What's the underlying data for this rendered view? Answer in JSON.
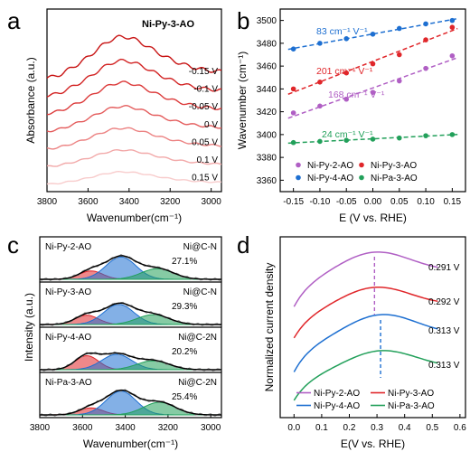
{
  "panel_letters": [
    "a",
    "b",
    "c",
    "d"
  ],
  "colors": {
    "Ni-Py-2-AO": "#b05fc4",
    "Ni-Py-3-AO": "#e0262a",
    "Ni-Py-4-AO": "#1d6fd1",
    "Ni-Pa-3-AO": "#22a05a",
    "axis": "#000000"
  },
  "chart_data": [
    {
      "id": "a",
      "type": "line",
      "title": "Ni-Py-3-AO",
      "xlabel": "Wavenumber(cm⁻¹)",
      "ylabel": "Absorbance (a.u.)",
      "xlim": [
        3800,
        2950
      ],
      "xticks": [
        3800,
        3600,
        3400,
        3200,
        3000
      ],
      "peak_x": 3460,
      "series": [
        {
          "name": "-0.15 V",
          "amplitude": 1.0,
          "offset": 6,
          "color": "#c81414"
        },
        {
          "name": "-0.1 V",
          "amplitude": 0.85,
          "offset": 5,
          "color": "#d22222"
        },
        {
          "name": "-0.05 V",
          "amplitude": 0.75,
          "offset": 4,
          "color": "#dc3a3a"
        },
        {
          "name": "0 V",
          "amplitude": 0.6,
          "offset": 3,
          "color": "#e45c5c"
        },
        {
          "name": "0.05 V",
          "amplitude": 0.5,
          "offset": 2,
          "color": "#ec8282"
        },
        {
          "name": "0.1 V",
          "amplitude": 0.4,
          "offset": 1,
          "color": "#f2a8a8"
        },
        {
          "name": "0.15 V",
          "amplitude": 0.3,
          "offset": 0,
          "color": "#f8cccc"
        }
      ]
    },
    {
      "id": "b",
      "type": "scatter",
      "xlabel": "E (V vs. RHE)",
      "ylabel": "Wavenumber (cm⁻¹)",
      "xlim": [
        -0.175,
        0.175
      ],
      "ylim": [
        3350,
        3510
      ],
      "xticks": [
        "-0.15",
        "-0.10",
        "-0.05",
        "0.00",
        "0.05",
        "0.10",
        "0.15"
      ],
      "yticks": [
        "3360",
        "3380",
        "3400",
        "3420",
        "3440",
        "3460",
        "3480",
        "3500"
      ],
      "x": [
        -0.15,
        -0.1,
        -0.05,
        0.0,
        0.05,
        0.1,
        0.15
      ],
      "series": [
        {
          "name": "Ni-Py-4-AO",
          "values": [
            3475,
            3480,
            3484,
            3488,
            3493,
            3497,
            3500
          ],
          "slope_label": "83 cm⁻¹ V⁻¹",
          "color": "#1d6fd1"
        },
        {
          "name": "Ni-Py-3-AO",
          "values": [
            3440,
            3446,
            3454,
            3462,
            3470,
            3483,
            3494
          ],
          "slope_label": "201 cm⁻¹ V⁻¹",
          "color": "#e0262a"
        },
        {
          "name": "Ni-Py-2-AO",
          "values": [
            3419,
            3425,
            3431,
            3437,
            3447,
            3458,
            3469
          ],
          "slope_label": "168 cm⁻¹ V⁻¹",
          "color": "#b05fc4"
        },
        {
          "name": "Ni-Pa-3-AO",
          "values": [
            3393,
            3394,
            3395,
            3396,
            3397,
            3399,
            3400
          ],
          "slope_label": "24 cm⁻¹ V⁻¹",
          "color": "#22a05a"
        }
      ],
      "legend": [
        "Ni-Py-2-AO",
        "Ni-Py-3-AO",
        "Ni-Py-4-AO",
        "Ni-Pa-3-AO"
      ]
    },
    {
      "id": "c",
      "type": "area",
      "xlabel": "Wavenumber(cm⁻¹)",
      "ylabel": "Intensity (a.u.)",
      "xlim": [
        3800,
        2950
      ],
      "xticks": [
        3800,
        3600,
        3400,
        3200,
        3000
      ],
      "panels": [
        {
          "sample": "Ni-Py-2-AO",
          "site": "Ni@C-N",
          "percent": "27.1%",
          "peaks": [
            {
              "center": 3560,
              "height": 0.3,
              "color": "#e0262a"
            },
            {
              "center": 3420,
              "height": 0.8,
              "color": "#1d6fd1"
            },
            {
              "center": 3250,
              "height": 0.38,
              "color": "#22a05a"
            }
          ]
        },
        {
          "sample": "Ni-Py-3-AO",
          "site": "Ni@C-N",
          "percent": "29.3%",
          "peaks": [
            {
              "center": 3580,
              "height": 0.33,
              "color": "#e0262a"
            },
            {
              "center": 3430,
              "height": 0.72,
              "color": "#1d6fd1"
            },
            {
              "center": 3270,
              "height": 0.35,
              "color": "#22a05a"
            }
          ]
        },
        {
          "sample": "Ni-Py-4-AO",
          "site": "Ni@C-2N",
          "percent": "20.2%",
          "peaks": [
            {
              "center": 3580,
              "height": 0.5,
              "color": "#e0262a"
            },
            {
              "center": 3440,
              "height": 0.55,
              "color": "#1d6fd1"
            },
            {
              "center": 3270,
              "height": 0.32,
              "color": "#22a05a"
            }
          ]
        },
        {
          "sample": "Ni-Pa-3-AO",
          "site": "Ni@C-2N",
          "percent": "25.4%",
          "peaks": [
            {
              "center": 3560,
              "height": 0.25,
              "color": "#e0262a"
            },
            {
              "center": 3420,
              "height": 0.85,
              "color": "#1d6fd1"
            },
            {
              "center": 3240,
              "height": 0.45,
              "color": "#22a05a"
            }
          ]
        }
      ]
    },
    {
      "id": "d",
      "type": "line",
      "xlabel": "E(V vs. RHE)",
      "ylabel": "Normalized current density",
      "xlim": [
        -0.05,
        0.62
      ],
      "xticks": [
        "0.0",
        "0.1",
        "0.2",
        "0.3",
        "0.4",
        "0.5",
        "0.6"
      ],
      "series": [
        {
          "name": "Ni-Py-2-AO",
          "peak_label": "0.291 V",
          "peak_x": 0.291,
          "color": "#b05fc4"
        },
        {
          "name": "Ni-Py-3-AO",
          "peak_label": "0.292 V",
          "peak_x": 0.292,
          "color": "#e0262a"
        },
        {
          "name": "Ni-Py-4-AO",
          "peak_label": "0.313 V",
          "peak_x": 0.313,
          "color": "#1d6fd1"
        },
        {
          "name": "Ni-Pa-3-AO",
          "peak_label": "0.313 V",
          "peak_x": 0.313,
          "color": "#22a05a"
        }
      ],
      "legend": [
        "Ni-Py-2-AO",
        "Ni-Py-3-AO",
        "Ni-Py-4-AO",
        "Ni-Pa-3-AO"
      ]
    }
  ]
}
